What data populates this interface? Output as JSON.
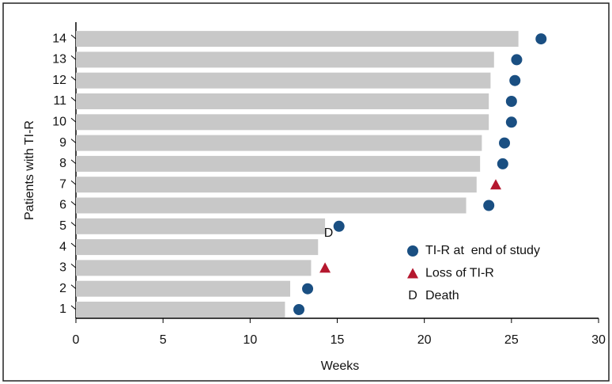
{
  "chart_data": {
    "type": "swimmer",
    "categories": [
      "1",
      "2",
      "3",
      "4",
      "5",
      "6",
      "7",
      "8",
      "9",
      "10",
      "11",
      "12",
      "13",
      "14"
    ],
    "values": [
      12.0,
      12.3,
      13.5,
      13.9,
      14.3,
      22.4,
      23.0,
      23.2,
      23.3,
      23.7,
      23.7,
      23.8,
      24.0,
      25.4
    ],
    "color": "#c8c8c8",
    "markers": [
      {
        "name": "TI-R at  end of study",
        "shape": "circle",
        "color": "#1a4f82",
        "values": [
          12.8,
          13.3,
          null,
          null,
          15.1,
          23.7,
          null,
          24.5,
          24.6,
          25.0,
          25.0,
          25.2,
          25.3,
          26.7
        ]
      },
      {
        "name": "Loss of TI-R",
        "shape": "triangle",
        "color": "#b5172e",
        "values": [
          null,
          null,
          14.3,
          null,
          null,
          null,
          24.1,
          null,
          null,
          null,
          null,
          null,
          null,
          null
        ]
      },
      {
        "name": "Death",
        "shape": "letter",
        "symbol": "D",
        "color": "#000000",
        "values": [
          null,
          null,
          null,
          null,
          14.5,
          null,
          null,
          null,
          null,
          null,
          null,
          null,
          null,
          null
        ]
      }
    ],
    "xlabel": "Weeks",
    "ylabel": "Patients with  TI-R",
    "xlim": [
      0,
      30
    ],
    "xticks": [
      0,
      5,
      10,
      15,
      20,
      25,
      30
    ]
  }
}
